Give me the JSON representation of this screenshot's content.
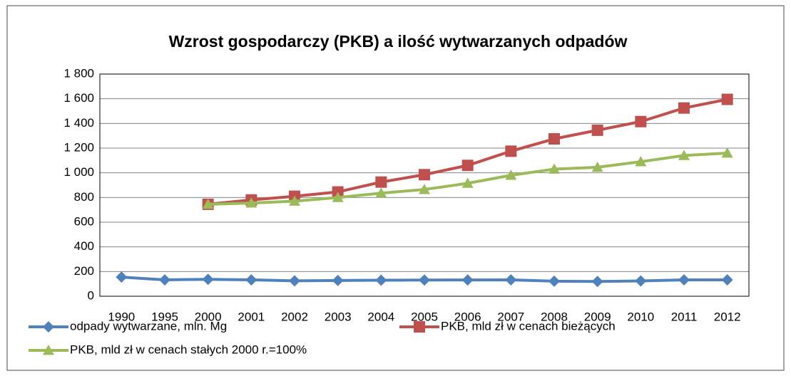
{
  "chart_data": {
    "type": "line",
    "title": "Wzrost gospodarczy (PKB) a ilość wytwarzanych odpadów",
    "categories": [
      "1990",
      "1995",
      "2000",
      "2001",
      "2002",
      "2003",
      "2004",
      "2005",
      "2006",
      "2007",
      "2008",
      "2009",
      "2010",
      "2011",
      "2012"
    ],
    "series": [
      {
        "name": "odpady wytwarzane, mln. Mg",
        "color": "#4f81bd",
        "marker": "diamond",
        "values": [
          155,
          133,
          137,
          133,
          125,
          128,
          130,
          131,
          132,
          133,
          122,
          120,
          124,
          133,
          133
        ]
      },
      {
        "name": "PKB, mld zł w cenach bieżących",
        "color": "#c0504d",
        "marker": "square",
        "values": [
          null,
          null,
          745,
          780,
          810,
          845,
          925,
          985,
          1060,
          1175,
          1275,
          1345,
          1415,
          1525,
          1595
        ]
      },
      {
        "name": "PKB, mld zł w cenach stałych 2000 r.=100%",
        "color": "#9bbb59",
        "marker": "triangle",
        "values": [
          null,
          null,
          745,
          755,
          770,
          800,
          835,
          865,
          915,
          980,
          1030,
          1045,
          1090,
          1140,
          1160
        ]
      }
    ],
    "ylim": [
      0,
      1800
    ],
    "yticks": [
      0,
      200,
      400,
      600,
      800,
      {
        "value": 1000,
        "label": "1 000"
      },
      {
        "value": 1200,
        "label": "1 200"
      },
      {
        "value": 1400,
        "label": "1 400"
      },
      {
        "value": 1600,
        "label": "1 600"
      },
      {
        "value": 1800,
        "label": "1 800"
      }
    ],
    "grid": true
  }
}
